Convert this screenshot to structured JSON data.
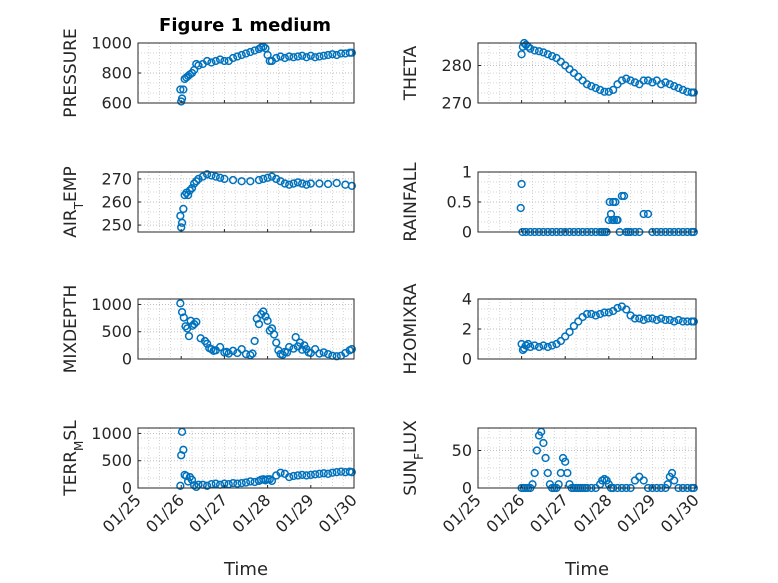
{
  "title": "Figure 1 medium",
  "colors": {
    "marker": "#0072BD",
    "axis": "#262626",
    "grid": "#c8c8c8"
  },
  "chart_data": [
    {
      "type": "scatter",
      "ylabel": "PRESSURE",
      "xlabel": "",
      "xlim": [
        0,
        5
      ],
      "ylim": [
        600,
        1000
      ],
      "yticks": [
        600,
        800,
        1000
      ],
      "xticks": [
        "01/25",
        "01/26",
        "01/27",
        "01/28",
        "01/29",
        "01/30"
      ],
      "grid": true,
      "x": [
        0.98,
        1.0,
        1.02,
        1.05,
        1.08,
        1.12,
        1.16,
        1.2,
        1.25,
        1.3,
        1.35,
        1.4,
        1.5,
        1.6,
        1.7,
        1.8,
        1.9,
        2.0,
        2.1,
        2.2,
        2.3,
        2.4,
        2.5,
        2.6,
        2.7,
        2.8,
        2.85,
        2.9,
        2.95,
        3.0,
        3.05,
        3.1,
        3.2,
        3.3,
        3.4,
        3.5,
        3.6,
        3.7,
        3.8,
        3.9,
        4.0,
        4.1,
        4.2,
        4.3,
        4.4,
        4.5,
        4.6,
        4.7,
        4.8,
        4.9,
        4.95
      ],
      "y": [
        690,
        610,
        630,
        690,
        760,
        770,
        780,
        790,
        800,
        820,
        860,
        850,
        860,
        880,
        870,
        880,
        890,
        880,
        880,
        900,
        910,
        920,
        930,
        940,
        950,
        960,
        970,
        975,
        965,
        920,
        880,
        880,
        900,
        910,
        900,
        910,
        905,
        910,
        915,
        905,
        915,
        905,
        910,
        915,
        920,
        925,
        920,
        930,
        930,
        935,
        935
      ]
    },
    {
      "type": "scatter",
      "ylabel": "THETA",
      "xlabel": "",
      "xlim": [
        0,
        5
      ],
      "ylim": [
        270,
        286
      ],
      "yticks": [
        270,
        280
      ],
      "xticks": [
        "01/25",
        "01/26",
        "01/27",
        "01/28",
        "01/29",
        "01/30"
      ],
      "grid": true,
      "x": [
        1.0,
        1.03,
        1.06,
        1.1,
        1.15,
        1.2,
        1.3,
        1.4,
        1.5,
        1.6,
        1.7,
        1.8,
        1.9,
        2.0,
        2.1,
        2.2,
        2.3,
        2.4,
        2.5,
        2.6,
        2.7,
        2.8,
        2.9,
        3.0,
        3.1,
        3.2,
        3.3,
        3.4,
        3.5,
        3.6,
        3.7,
        3.8,
        3.9,
        4.0,
        4.1,
        4.2,
        4.3,
        4.4,
        4.5,
        4.6,
        4.7,
        4.8,
        4.9,
        4.95
      ],
      "y": [
        283,
        285,
        286,
        285.5,
        285,
        284.5,
        284,
        283.8,
        283.5,
        283,
        282.5,
        282,
        281,
        280,
        279,
        278,
        277,
        276,
        275,
        274.5,
        274,
        273.5,
        273,
        273,
        273.5,
        275,
        276,
        276.5,
        276,
        275.5,
        275,
        276,
        276,
        275.5,
        276,
        275,
        275.5,
        275,
        274.5,
        274,
        273.5,
        273,
        272.8,
        272.8
      ]
    },
    {
      "type": "scatter",
      "ylabel": "AIR_TEMP",
      "xlabel": "",
      "xlim": [
        0,
        5
      ],
      "ylim": [
        247,
        273
      ],
      "yticks": [
        250,
        260,
        270
      ],
      "xticks": [
        "01/25",
        "01/26",
        "01/27",
        "01/28",
        "01/29",
        "01/30"
      ],
      "grid": true,
      "x": [
        0.98,
        1.0,
        1.02,
        1.05,
        1.08,
        1.12,
        1.16,
        1.2,
        1.25,
        1.3,
        1.35,
        1.4,
        1.5,
        1.6,
        1.7,
        1.8,
        1.9,
        2.0,
        2.2,
        2.4,
        2.6,
        2.8,
        2.9,
        3.0,
        3.1,
        3.2,
        3.3,
        3.4,
        3.5,
        3.6,
        3.7,
        3.8,
        3.9,
        4.0,
        4.2,
        4.4,
        4.6,
        4.8,
        4.95
      ],
      "y": [
        254,
        249,
        251,
        257,
        263,
        264,
        263,
        265,
        266,
        268,
        269,
        270,
        271,
        272,
        271.5,
        271,
        270.5,
        270,
        269.5,
        269,
        269,
        269.5,
        270,
        270.5,
        271,
        270,
        269,
        268,
        267.5,
        268,
        268.5,
        268,
        267.5,
        268,
        268,
        267.8,
        268.2,
        267.5,
        267
      ]
    },
    {
      "type": "scatter",
      "ylabel": "RAINFALL",
      "xlabel": "",
      "xlim": [
        0,
        5
      ],
      "ylim": [
        0,
        1
      ],
      "yticks": [
        0,
        0.5,
        1
      ],
      "xticks": [
        "01/25",
        "01/26",
        "01/27",
        "01/28",
        "01/29",
        "01/30"
      ],
      "grid": true,
      "x": [
        0.98,
        1.0,
        1.02,
        1.1,
        1.2,
        1.3,
        1.4,
        1.5,
        1.6,
        1.7,
        1.8,
        1.9,
        2.0,
        2.1,
        2.2,
        2.3,
        2.4,
        2.5,
        2.6,
        2.7,
        2.8,
        2.85,
        2.9,
        2.95,
        3.0,
        3.02,
        3.05,
        3.08,
        3.1,
        3.12,
        3.15,
        3.18,
        3.2,
        3.25,
        3.3,
        3.35,
        3.4,
        3.45,
        3.5,
        3.6,
        3.7,
        3.8,
        3.9,
        4.0,
        4.1,
        4.2,
        4.3,
        4.4,
        4.5,
        4.6,
        4.7,
        4.8,
        4.9,
        4.95
      ],
      "y": [
        0.4,
        0.8,
        0,
        0,
        0,
        0,
        0,
        0,
        0,
        0,
        0,
        0,
        0,
        0,
        0,
        0,
        0,
        0,
        0,
        0,
        0,
        0,
        0,
        0,
        0.2,
        0.5,
        0.3,
        0.2,
        0.5,
        0.2,
        0.5,
        0.2,
        0.2,
        0,
        0.6,
        0.6,
        0,
        0,
        0,
        0,
        0,
        0.3,
        0.3,
        0,
        0,
        0,
        0,
        0,
        0,
        0,
        0,
        0,
        0,
        0
      ]
    },
    {
      "type": "scatter",
      "ylabel": "MIXDEPTH",
      "xlabel": "",
      "xlim": [
        0,
        5
      ],
      "ylim": [
        0,
        1100
      ],
      "yticks": [
        0,
        500,
        1000
      ],
      "xticks": [
        "01/25",
        "01/26",
        "01/27",
        "01/28",
        "01/29",
        "01/30"
      ],
      "grid": true,
      "x": [
        0.98,
        1.02,
        1.06,
        1.1,
        1.14,
        1.18,
        1.22,
        1.26,
        1.3,
        1.35,
        1.45,
        1.55,
        1.6,
        1.65,
        1.7,
        1.75,
        1.8,
        1.9,
        2.0,
        2.05,
        2.1,
        2.2,
        2.3,
        2.4,
        2.5,
        2.6,
        2.65,
        2.7,
        2.75,
        2.8,
        2.85,
        2.9,
        2.95,
        3.0,
        3.05,
        3.1,
        3.15,
        3.2,
        3.25,
        3.3,
        3.35,
        3.4,
        3.45,
        3.5,
        3.6,
        3.65,
        3.7,
        3.75,
        3.8,
        3.85,
        3.9,
        3.95,
        4.0,
        4.1,
        4.2,
        4.3,
        4.4,
        4.5,
        4.6,
        4.7,
        4.8,
        4.9,
        4.95
      ],
      "y": [
        1020,
        860,
        760,
        600,
        560,
        420,
        700,
        610,
        640,
        680,
        380,
        330,
        280,
        200,
        180,
        150,
        160,
        220,
        120,
        130,
        100,
        150,
        110,
        180,
        90,
        70,
        100,
        330,
        740,
        640,
        820,
        870,
        780,
        700,
        520,
        560,
        450,
        300,
        160,
        90,
        80,
        130,
        120,
        220,
        190,
        400,
        230,
        300,
        170,
        250,
        180,
        120,
        110,
        180,
        100,
        120,
        90,
        60,
        50,
        60,
        110,
        160,
        180
      ]
    },
    {
      "type": "scatter",
      "ylabel": "H2OMIXRA",
      "xlabel": "",
      "xlim": [
        0,
        5
      ],
      "ylim": [
        0,
        4
      ],
      "yticks": [
        0,
        2,
        4
      ],
      "xticks": [
        "01/25",
        "01/26",
        "01/27",
        "01/28",
        "01/29",
        "01/30"
      ],
      "grid": true,
      "x": [
        1.0,
        1.03,
        1.06,
        1.1,
        1.15,
        1.2,
        1.3,
        1.4,
        1.5,
        1.6,
        1.7,
        1.8,
        1.9,
        2.0,
        2.1,
        2.2,
        2.3,
        2.4,
        2.5,
        2.6,
        2.7,
        2.8,
        2.9,
        3.0,
        3.1,
        3.2,
        3.3,
        3.4,
        3.5,
        3.6,
        3.7,
        3.8,
        3.9,
        4.0,
        4.1,
        4.2,
        4.3,
        4.4,
        4.5,
        4.6,
        4.7,
        4.8,
        4.9,
        4.95
      ],
      "y": [
        1.0,
        0.6,
        0.7,
        0.9,
        1.0,
        0.8,
        0.9,
        0.8,
        0.9,
        0.8,
        0.9,
        1.0,
        1.2,
        1.5,
        1.8,
        2.2,
        2.5,
        2.8,
        3.0,
        3.0,
        2.9,
        3.0,
        3.1,
        3.1,
        3.2,
        3.4,
        3.5,
        3.3,
        2.9,
        2.7,
        2.7,
        2.6,
        2.7,
        2.7,
        2.6,
        2.7,
        2.6,
        2.6,
        2.5,
        2.6,
        2.5,
        2.5,
        2.5,
        2.5
      ]
    },
    {
      "type": "scatter",
      "ylabel": "TERR_MSL",
      "xlabel": "Time",
      "xlim": [
        0,
        5
      ],
      "ylim": [
        0,
        1100
      ],
      "yticks": [
        0,
        500,
        1000
      ],
      "xticks": [
        "01/25",
        "01/26",
        "01/27",
        "01/28",
        "01/29",
        "01/30"
      ],
      "grid": true,
      "x": [
        0.98,
        1.0,
        1.02,
        1.05,
        1.08,
        1.12,
        1.16,
        1.2,
        1.25,
        1.3,
        1.35,
        1.4,
        1.5,
        1.6,
        1.7,
        1.8,
        1.9,
        2.0,
        2.1,
        2.2,
        2.3,
        2.4,
        2.5,
        2.6,
        2.7,
        2.8,
        2.85,
        2.9,
        2.95,
        3.0,
        3.05,
        3.1,
        3.2,
        3.3,
        3.4,
        3.5,
        3.6,
        3.7,
        3.8,
        3.9,
        4.0,
        4.1,
        4.2,
        4.3,
        4.4,
        4.5,
        4.6,
        4.7,
        4.8,
        4.9,
        4.95
      ],
      "y": [
        40,
        600,
        1030,
        700,
        240,
        220,
        120,
        200,
        150,
        50,
        20,
        60,
        60,
        40,
        70,
        80,
        60,
        80,
        70,
        90,
        80,
        90,
        100,
        120,
        110,
        130,
        150,
        160,
        140,
        160,
        160,
        130,
        230,
        280,
        260,
        200,
        220,
        230,
        240,
        230,
        240,
        250,
        260,
        270,
        260,
        280,
        290,
        300,
        290,
        300,
        290
      ]
    },
    {
      "type": "scatter",
      "ylabel": "SUN_FLUX",
      "xlabel": "Time",
      "xlim": [
        0,
        5
      ],
      "ylim": [
        0,
        80
      ],
      "yticks": [
        0,
        50
      ],
      "xticks": [
        "01/25",
        "01/26",
        "01/27",
        "01/28",
        "01/29",
        "01/30"
      ],
      "grid": true,
      "x": [
        1.0,
        1.05,
        1.1,
        1.15,
        1.2,
        1.25,
        1.3,
        1.35,
        1.4,
        1.45,
        1.5,
        1.55,
        1.6,
        1.65,
        1.7,
        1.75,
        1.8,
        1.85,
        1.9,
        1.95,
        2.0,
        2.05,
        2.1,
        2.15,
        2.2,
        2.25,
        2.3,
        2.35,
        2.4,
        2.45,
        2.5,
        2.6,
        2.7,
        2.8,
        2.85,
        2.9,
        2.95,
        3.0,
        3.05,
        3.1,
        3.2,
        3.3,
        3.4,
        3.5,
        3.6,
        3.7,
        3.8,
        3.9,
        4.0,
        4.1,
        4.2,
        4.3,
        4.35,
        4.4,
        4.45,
        4.5,
        4.6,
        4.7,
        4.8,
        4.9,
        4.95
      ],
      "y": [
        0,
        0,
        0,
        0,
        0,
        5,
        20,
        50,
        70,
        75,
        60,
        40,
        20,
        5,
        0,
        0,
        0,
        5,
        20,
        40,
        35,
        20,
        5,
        0,
        0,
        0,
        0,
        0,
        0,
        0,
        0,
        0,
        0,
        5,
        10,
        12,
        10,
        5,
        0,
        0,
        0,
        0,
        0,
        0,
        10,
        15,
        10,
        0,
        0,
        0,
        0,
        0,
        5,
        15,
        20,
        10,
        0,
        0,
        0,
        0,
        0
      ]
    }
  ]
}
